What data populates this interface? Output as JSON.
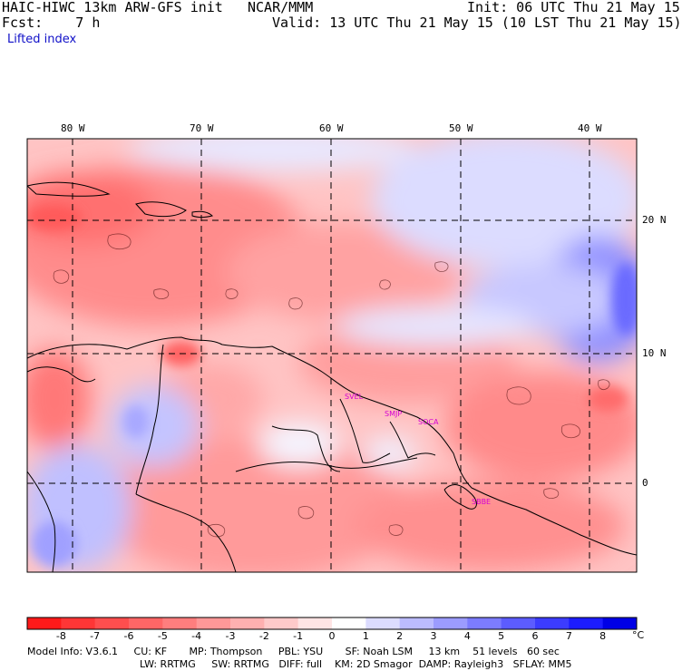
{
  "header": {
    "model_title": "HAIC-HIWC 13km ARW-GFS init",
    "organization": "NCAR/MMM",
    "init": "Init: 06 UTC Thu 21 May 15",
    "forecast": "Fcst:    7 h",
    "valid": "Valid: 13 UTC Thu 21 May 15 (10 LST Thu 21 May 15)",
    "field": "Lifted index"
  },
  "map": {
    "lon_labels": [
      "80 W",
      "70 W",
      "60 W",
      "50 W",
      "40 W"
    ],
    "lat_labels": [
      "20 N",
      "10 N",
      "0"
    ],
    "stations": [
      "SVEL",
      "SMJP",
      "SOCA",
      "SBBE"
    ]
  },
  "colorbar": {
    "labels": [
      "-8",
      "-7",
      "-6",
      "-5",
      "-4",
      "-3",
      "-2",
      "-1",
      "0",
      "1",
      "2",
      "3",
      "4",
      "5",
      "6",
      "7",
      "8"
    ],
    "unit": "°C",
    "colors": [
      "#ff1a1a",
      "#ff3636",
      "#ff4e4e",
      "#ff6666",
      "#ff7e7e",
      "#ff9898",
      "#ffb0b0",
      "#ffcaca",
      "#ffe4e4",
      "#ffffff",
      "#dcdcff",
      "#bcbcff",
      "#9c9cff",
      "#7c7cff",
      "#5c5cff",
      "#3c3cff",
      "#1c1cff",
      "#0000e6"
    ]
  },
  "model_info": {
    "line1": "Model Info: V3.6.1     CU: KF       MP: Thompson     PBL: YSU       SF: Noah LSM     13 km    51 levels   60 sec",
    "line2": "LW: RRTMG     SW: RRTMG   DIFF: full    KM: 2D Smagor  DAMP: Rayleigh3   SFLAY: MM5"
  }
}
